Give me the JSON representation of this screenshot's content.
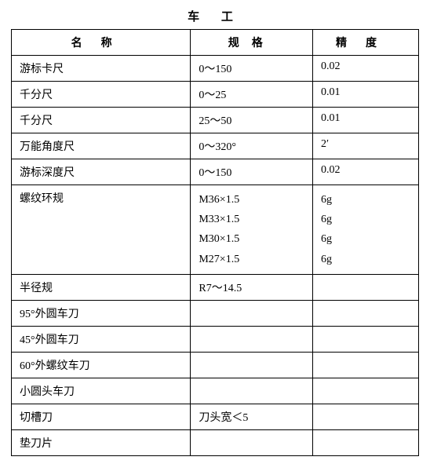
{
  "title": "车 工",
  "headers": {
    "name": "名称",
    "spec": "规格",
    "precision": "精度"
  },
  "rows": [
    {
      "name": "游标卡尺",
      "spec": "0～150",
      "precision": "0.02"
    },
    {
      "name": "千分尺",
      "spec": "0～25",
      "precision": "0.01"
    },
    {
      "name": "千分尺",
      "spec": "25～50",
      "precision": "0.01"
    },
    {
      "name": "万能角度尺",
      "spec": "0～320°",
      "precision": "2′"
    },
    {
      "name": "游标深度尺",
      "spec": "0～150",
      "precision": "0.02"
    },
    {
      "name": "螺纹环规",
      "spec": "M36×1.5\nM33×1.5\nM30×1.5\nM27×1.5",
      "precision": "6g\n6g\n6g\n6g",
      "multi": true
    },
    {
      "name": "半径规",
      "spec": "R7～14.5",
      "precision": ""
    },
    {
      "name": "95°外圆车刀",
      "spec": "",
      "precision": ""
    },
    {
      "name": "45°外圆车刀",
      "spec": "",
      "precision": ""
    },
    {
      "name": "60°外螺纹车刀",
      "spec": "",
      "precision": ""
    },
    {
      "name": "小圆头车刀",
      "spec": "",
      "precision": ""
    },
    {
      "name": "切槽刀",
      "spec": "刀头宽＜5",
      "precision": ""
    },
    {
      "name": "垫刀片",
      "spec": "",
      "precision": ""
    }
  ]
}
